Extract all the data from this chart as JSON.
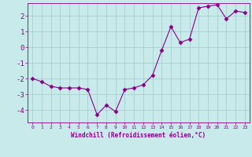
{
  "x": [
    0,
    1,
    2,
    3,
    4,
    5,
    6,
    7,
    8,
    9,
    10,
    11,
    12,
    13,
    14,
    15,
    16,
    17,
    18,
    19,
    20,
    21,
    22,
    23
  ],
  "y": [
    -2.0,
    -2.2,
    -2.5,
    -2.6,
    -2.6,
    -2.6,
    -2.7,
    -4.3,
    -3.7,
    -4.1,
    -2.7,
    -2.6,
    -2.4,
    -1.8,
    -0.2,
    1.3,
    0.3,
    0.5,
    2.5,
    2.6,
    2.7,
    1.8,
    2.3,
    2.2
  ],
  "xlabel": "Windchill (Refroidissement éolien,°C)",
  "xlim": [
    -0.5,
    23.5
  ],
  "ylim": [
    -4.8,
    2.8
  ],
  "yticks": [
    -4,
    -3,
    -2,
    -1,
    0,
    1,
    2
  ],
  "xticks": [
    0,
    1,
    2,
    3,
    4,
    5,
    6,
    7,
    8,
    9,
    10,
    11,
    12,
    13,
    14,
    15,
    16,
    17,
    18,
    19,
    20,
    21,
    22,
    23
  ],
  "line_color": "#880088",
  "marker": "D",
  "marker_size": 2.5,
  "bg_color": "#c8eaea",
  "grid_color": "#a0c8c8",
  "tick_color": "#880088",
  "label_color": "#880088",
  "spine_color": "#880088"
}
